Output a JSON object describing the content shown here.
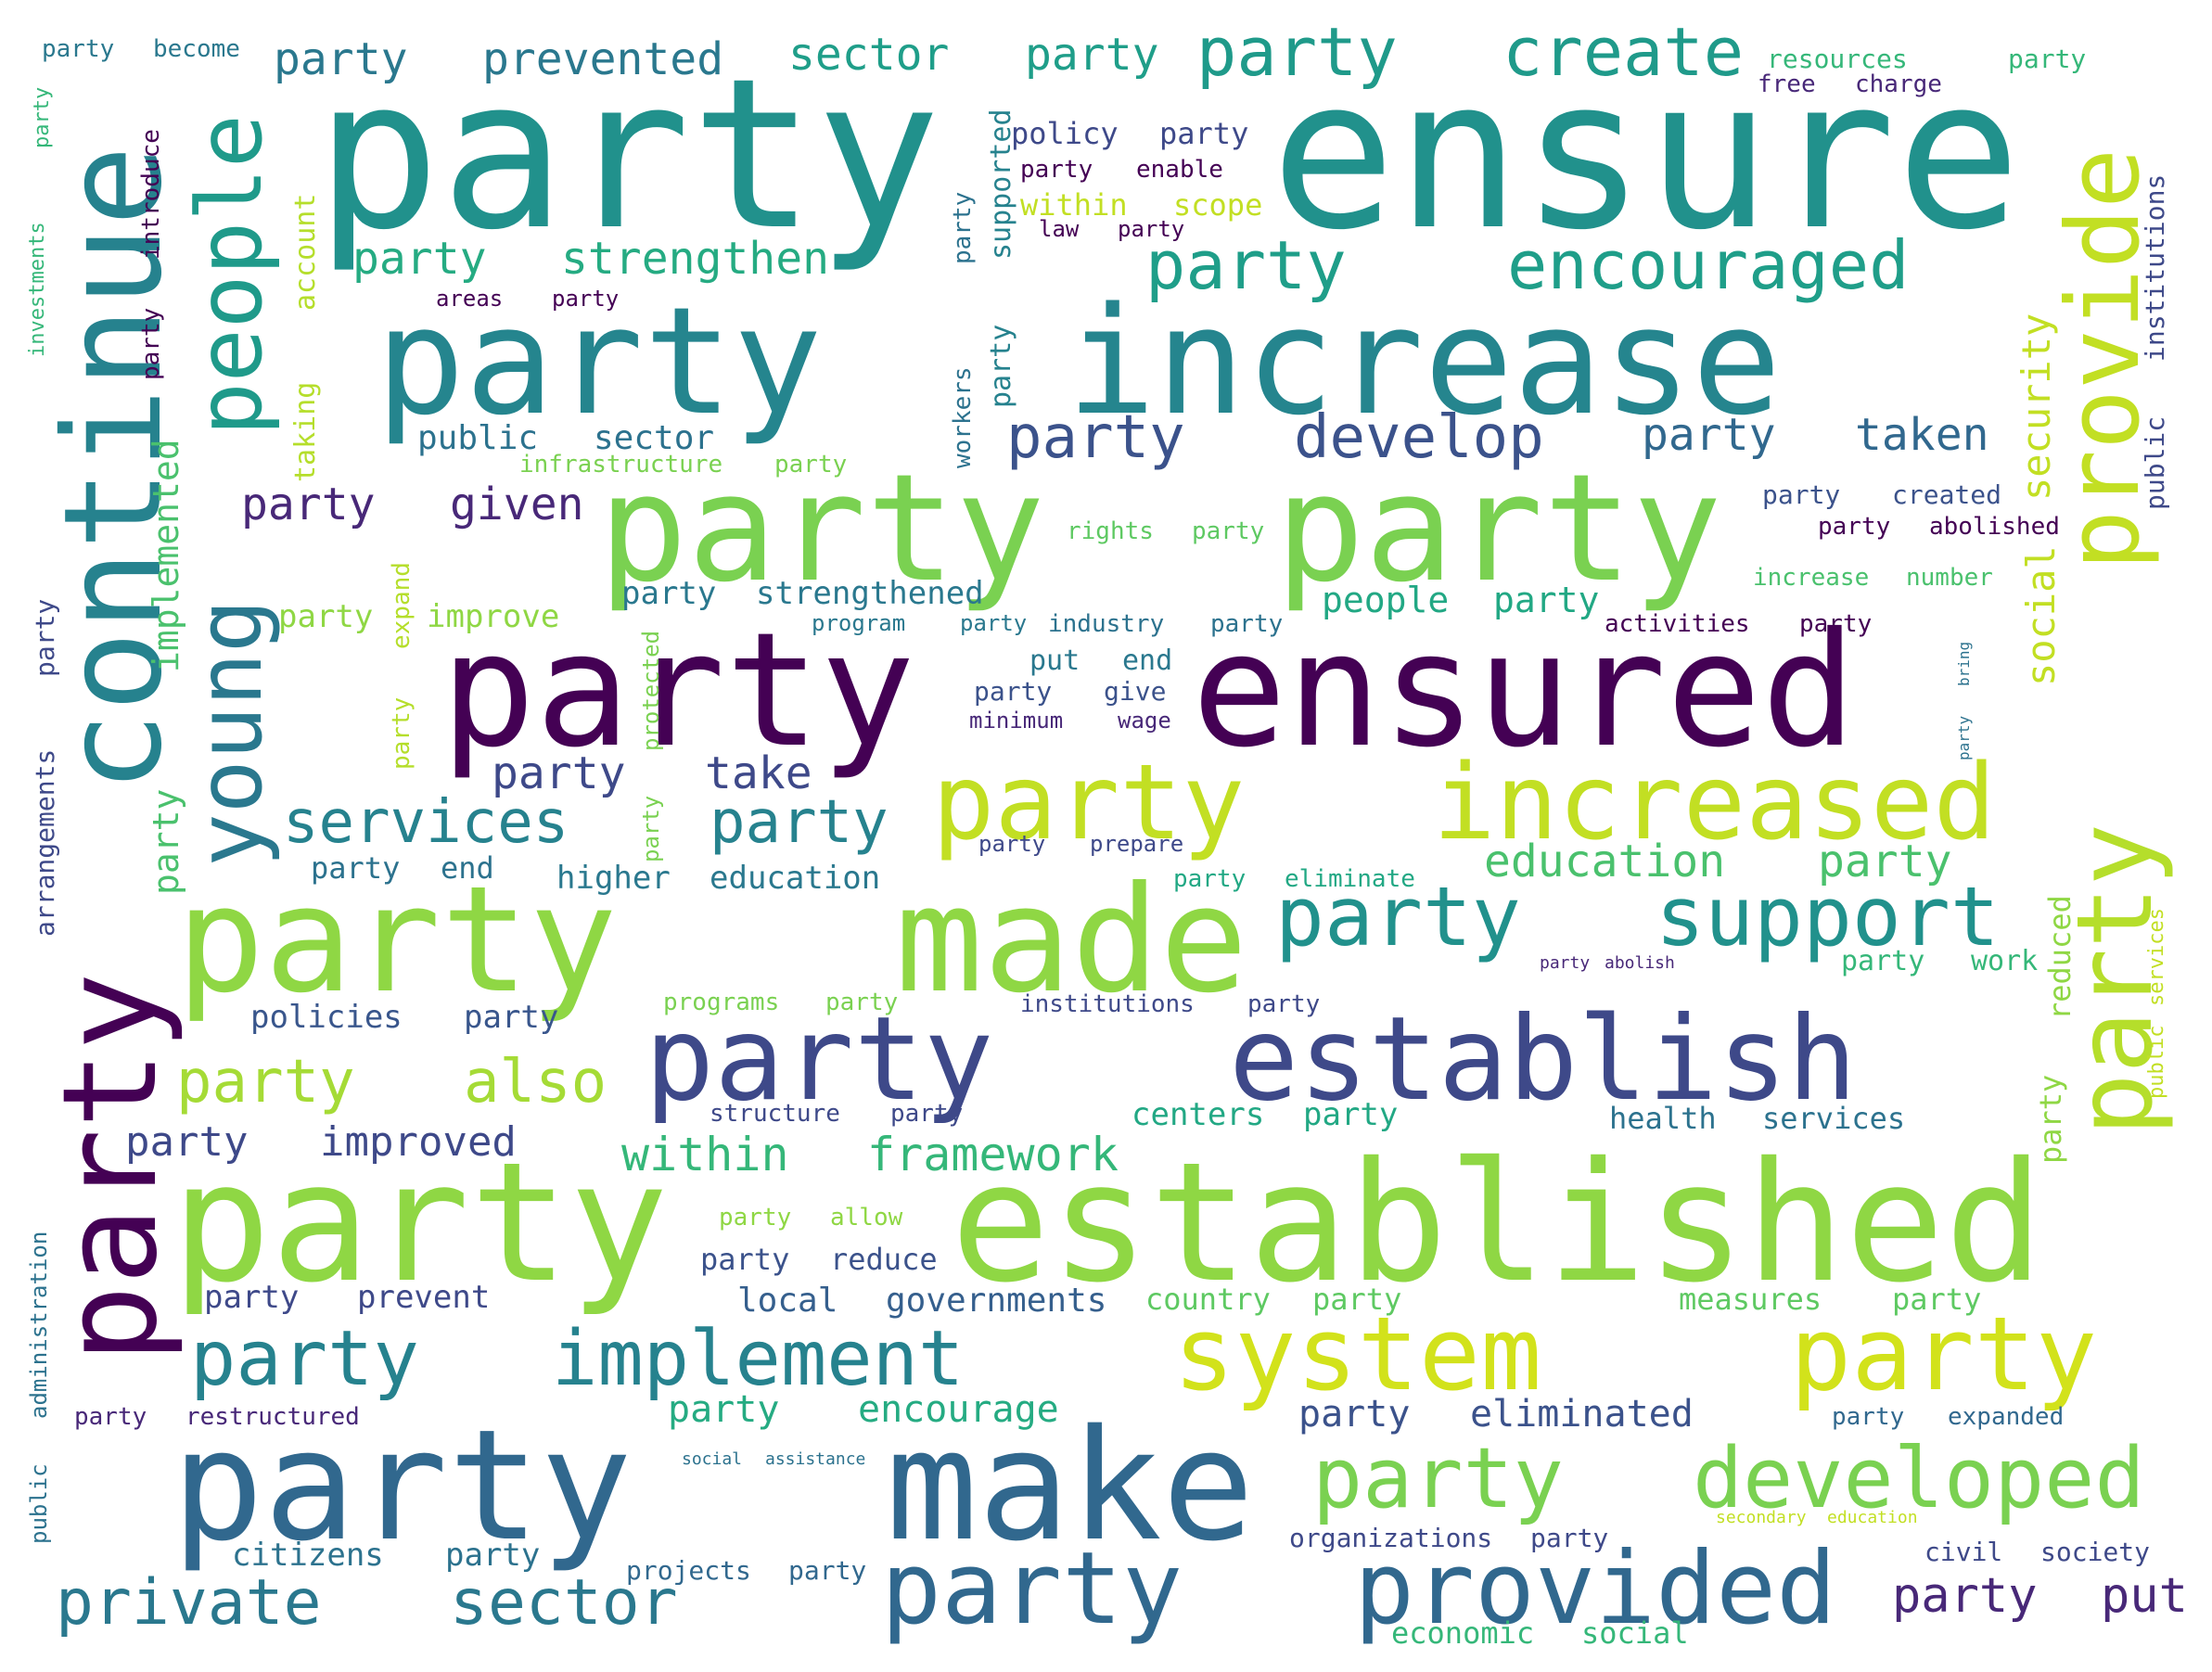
{
  "palette": {
    "dark_purple": "#440154",
    "indigo": "#482878",
    "slate_blue": "#3e4989",
    "steel_blue": "#31688e",
    "teal_blue": "#26828e",
    "teal": "#1f9e89",
    "sea_green": "#35b779",
    "lime": "#6ece58",
    "yellow_green": "#b5de2b",
    "yellow": "#fde725"
  },
  "words": [
    {
      "text": "party",
      "color": "#21918c"
    },
    {
      "text": "ensure",
      "color": "#21918c"
    },
    {
      "text": "party",
      "color": "#25858e"
    },
    {
      "text": "increase",
      "color": "#25858e"
    },
    {
      "text": "party",
      "color": "#7ad151"
    },
    {
      "text": "party",
      "color": "#7ad151"
    },
    {
      "text": "party",
      "color": "#440154"
    },
    {
      "text": "ensured",
      "color": "#440154"
    },
    {
      "text": "party",
      "color": "#c2df23"
    },
    {
      "text": "increased",
      "color": "#c2df23"
    },
    {
      "text": "party",
      "color": "#8fd744"
    },
    {
      "text": "made",
      "color": "#8fd744"
    },
    {
      "text": "party",
      "color": "#3e4989"
    },
    {
      "text": "establish",
      "color": "#3e4989"
    },
    {
      "text": "party",
      "color": "#8fd744"
    },
    {
      "text": "established",
      "color": "#8fd744"
    },
    {
      "text": "system",
      "color": "#d2e21b"
    },
    {
      "text": "party",
      "color": "#d2e21b"
    },
    {
      "text": "party",
      "color": "#31688e"
    },
    {
      "text": "make",
      "color": "#31688e"
    },
    {
      "text": "party",
      "color": "#31688e"
    },
    {
      "text": "provided",
      "color": "#31688e"
    },
    {
      "text": "party",
      "color": "#7ad151"
    },
    {
      "text": "developed",
      "color": "#7ad151"
    },
    {
      "text": "party",
      "color": "#1f9a8a"
    },
    {
      "text": "create",
      "color": "#1f9a8a"
    },
    {
      "text": "party",
      "color": "#1f9e89"
    },
    {
      "text": "encouraged",
      "color": "#1f9e89"
    },
    {
      "text": "party",
      "color": "#3b528b"
    },
    {
      "text": "develop",
      "color": "#3b528b"
    },
    {
      "text": "party",
      "color": "#21918c"
    },
    {
      "text": "support",
      "color": "#21918c"
    },
    {
      "text": "party",
      "color": "#26828e"
    },
    {
      "text": "implement",
      "color": "#26828e"
    },
    {
      "text": "private",
      "color": "#2a788e"
    },
    {
      "text": "sector",
      "color": "#2a788e"
    },
    {
      "text": "party",
      "color": "#a5db36"
    },
    {
      "text": "also",
      "color": "#a5db36"
    },
    {
      "text": "services",
      "color": "#26828e"
    },
    {
      "text": "party",
      "color": "#26828e"
    },
    {
      "text": "party",
      "color": "#2a788e"
    },
    {
      "text": "prevented",
      "color": "#2a788e"
    },
    {
      "text": "sector",
      "color": "#1f9e89"
    },
    {
      "text": "party",
      "color": "#1f9e89"
    },
    {
      "text": "party",
      "color": "#25ab82"
    },
    {
      "text": "strengthen",
      "color": "#25ab82"
    },
    {
      "text": "party",
      "color": "#482878"
    },
    {
      "text": "given",
      "color": "#482878"
    },
    {
      "text": "party",
      "color": "#31688e"
    },
    {
      "text": "taken",
      "color": "#31688e"
    },
    {
      "text": "party",
      "color": "#3e4989"
    },
    {
      "text": "take",
      "color": "#3e4989"
    },
    {
      "text": "education",
      "color": "#4ac16d"
    },
    {
      "text": "party",
      "color": "#4ac16d"
    },
    {
      "text": "within",
      "color": "#35b779"
    },
    {
      "text": "framework",
      "color": "#35b779"
    },
    {
      "text": "party",
      "color": "#3e4989"
    },
    {
      "text": "improved",
      "color": "#3e4989"
    },
    {
      "text": "party",
      "color": "#3b528b"
    },
    {
      "text": "eliminated",
      "color": "#3b528b"
    },
    {
      "text": "party",
      "color": "#25ab82"
    },
    {
      "text": "encourage",
      "color": "#25ab82"
    },
    {
      "text": "local",
      "color": "#355f8d"
    },
    {
      "text": "governments",
      "color": "#355f8d"
    },
    {
      "text": "party",
      "color": "#482878"
    },
    {
      "text": "put",
      "color": "#482878"
    },
    {
      "text": "party",
      "color": "#2a788e"
    },
    {
      "text": "strengthened",
      "color": "#2a788e"
    },
    {
      "text": "public",
      "color": "#2c728e"
    },
    {
      "text": "sector",
      "color": "#2c728e"
    },
    {
      "text": "party",
      "color": "#8fd744"
    },
    {
      "text": "improve",
      "color": "#8fd744"
    },
    {
      "text": "people",
      "color": "#22a884"
    },
    {
      "text": "party",
      "color": "#22a884"
    },
    {
      "text": "party",
      "color": "#2c728e"
    },
    {
      "text": "end",
      "color": "#2c728e"
    },
    {
      "text": "higher",
      "color": "#2a788e"
    },
    {
      "text": "education",
      "color": "#2a788e"
    },
    {
      "text": "policies",
      "color": "#39568c"
    },
    {
      "text": "party",
      "color": "#39568c"
    },
    {
      "text": "centers",
      "color": "#22a884"
    },
    {
      "text": "party",
      "color": "#22a884"
    },
    {
      "text": "health",
      "color": "#2c728e"
    },
    {
      "text": "services",
      "color": "#2c728e"
    },
    {
      "text": "party",
      "color": "#3e4989"
    },
    {
      "text": "prevent",
      "color": "#3e4989"
    },
    {
      "text": "party",
      "color": "#3b528b"
    },
    {
      "text": "reduce",
      "color": "#3b528b"
    },
    {
      "text": "country",
      "color": "#5ec962"
    },
    {
      "text": "party",
      "color": "#5ec962"
    },
    {
      "text": "measures",
      "color": "#5ec962"
    },
    {
      "text": "party",
      "color": "#5ec962"
    },
    {
      "text": "citizens",
      "color": "#2c728e"
    },
    {
      "text": "party",
      "color": "#2c728e"
    },
    {
      "text": "party",
      "color": "#31688e"
    },
    {
      "text": "expanded",
      "color": "#31688e"
    },
    {
      "text": "civil",
      "color": "#3e4989"
    },
    {
      "text": "society",
      "color": "#3e4989"
    },
    {
      "text": "organizations",
      "color": "#3e4989"
    },
    {
      "text": "party",
      "color": "#3e4989"
    },
    {
      "text": "projects",
      "color": "#31688e"
    },
    {
      "text": "party",
      "color": "#31688e"
    },
    {
      "text": "economic",
      "color": "#35b779"
    },
    {
      "text": "social",
      "color": "#35b779"
    },
    {
      "text": "party",
      "color": "#482878"
    },
    {
      "text": "restructured",
      "color": "#482878"
    },
    {
      "text": "party",
      "color": "#2a788e"
    },
    {
      "text": "become",
      "color": "#2a788e"
    },
    {
      "text": "resources",
      "color": "#35b779"
    },
    {
      "text": "party",
      "color": "#35b779"
    },
    {
      "text": "free",
      "color": "#482878"
    },
    {
      "text": "charge",
      "color": "#482878"
    },
    {
      "text": "policy",
      "color": "#3e4989"
    },
    {
      "text": "party",
      "color": "#3e4989"
    },
    {
      "text": "party",
      "color": "#440154"
    },
    {
      "text": "enable",
      "color": "#440154"
    },
    {
      "text": "within",
      "color": "#c2df23"
    },
    {
      "text": "scope",
      "color": "#c2df23"
    },
    {
      "text": "law",
      "color": "#440154"
    },
    {
      "text": "party",
      "color": "#440154"
    },
    {
      "text": "areas",
      "color": "#440154"
    },
    {
      "text": "party",
      "color": "#440154"
    },
    {
      "text": "infrastructure",
      "color": "#7ad151"
    },
    {
      "text": "party",
      "color": "#7ad151"
    },
    {
      "text": "rights",
      "color": "#5ec962"
    },
    {
      "text": "party",
      "color": "#5ec962"
    },
    {
      "text": "party",
      "color": "#3b528b"
    },
    {
      "text": "created",
      "color": "#3b528b"
    },
    {
      "text": "party",
      "color": "#440154"
    },
    {
      "text": "abolished",
      "color": "#440154"
    },
    {
      "text": "increase",
      "color": "#4ac16d"
    },
    {
      "text": "number",
      "color": "#4ac16d"
    },
    {
      "text": "program",
      "color": "#2a788e"
    },
    {
      "text": "party",
      "color": "#2a788e"
    },
    {
      "text": "industry",
      "color": "#2c728e"
    },
    {
      "text": "party",
      "color": "#2c728e"
    },
    {
      "text": "activities",
      "color": "#440154"
    },
    {
      "text": "party",
      "color": "#440154"
    },
    {
      "text": "put",
      "color": "#2a788e"
    },
    {
      "text": "end",
      "color": "#2a788e"
    },
    {
      "text": "party",
      "color": "#3b528b"
    },
    {
      "text": "give",
      "color": "#3b528b"
    },
    {
      "text": "minimum",
      "color": "#482878"
    },
    {
      "text": "wage",
      "color": "#482878"
    },
    {
      "text": "party",
      "color": "#3e4989"
    },
    {
      "text": "prepare",
      "color": "#3e4989"
    },
    {
      "text": "party",
      "color": "#22a884"
    },
    {
      "text": "eliminate",
      "color": "#22a884"
    },
    {
      "text": "party",
      "color": "#482878"
    },
    {
      "text": "abolish",
      "color": "#482878"
    },
    {
      "text": "party",
      "color": "#35b779"
    },
    {
      "text": "work",
      "color": "#35b779"
    },
    {
      "text": "programs",
      "color": "#7ad151"
    },
    {
      "text": "party",
      "color": "#7ad151"
    },
    {
      "text": "institutions",
      "color": "#3e4989"
    },
    {
      "text": "party",
      "color": "#3e4989"
    },
    {
      "text": "structure",
      "color": "#3e4989"
    },
    {
      "text": "party",
      "color": "#3e4989"
    },
    {
      "text": "party",
      "color": "#8fd744"
    },
    {
      "text": "allow",
      "color": "#8fd744"
    },
    {
      "text": "social",
      "color": "#2c728e"
    },
    {
      "text": "assistance",
      "color": "#2c728e"
    },
    {
      "text": "secondary",
      "color": "#c2df23"
    },
    {
      "text": "education",
      "color": "#c2df23"
    },
    {
      "text": "continue",
      "color": "#26828e"
    },
    {
      "text": "people",
      "color": "#1f9a8a"
    },
    {
      "text": "young",
      "color": "#2a788e"
    },
    {
      "text": "party",
      "color": "#440154"
    },
    {
      "text": "provide",
      "color": "#c2df23"
    },
    {
      "text": "party",
      "color": "#b5de2b"
    },
    {
      "text": "security",
      "color": "#c2df23"
    },
    {
      "text": "social",
      "color": "#c2df23"
    },
    {
      "text": "party",
      "color": "#8fd744"
    },
    {
      "text": "reduced",
      "color": "#8fd744"
    },
    {
      "text": "public",
      "color": "#3e4989"
    },
    {
      "text": "institutions",
      "color": "#3e4989"
    },
    {
      "text": "public",
      "color": "#c2df23"
    },
    {
      "text": "services",
      "color": "#c2df23"
    },
    {
      "text": "party",
      "color": "#2c728e"
    },
    {
      "text": "bring",
      "color": "#2c728e"
    },
    {
      "text": "implemented",
      "color": "#4ac16d"
    },
    {
      "text": "party",
      "color": "#4ac16d"
    },
    {
      "text": "account",
      "color": "#b5de2b"
    },
    {
      "text": "taking",
      "color": "#b5de2b"
    },
    {
      "text": "supported",
      "color": "#26828e"
    },
    {
      "text": "party",
      "color": "#26828e"
    },
    {
      "text": "workers",
      "color": "#2c728e"
    },
    {
      "text": "party",
      "color": "#2c728e"
    },
    {
      "text": "introduce",
      "color": "#440154"
    },
    {
      "text": "party",
      "color": "#440154"
    },
    {
      "text": "investments",
      "color": "#35b779"
    },
    {
      "text": "party",
      "color": "#35b779"
    },
    {
      "text": "arrangements",
      "color": "#3e4989"
    },
    {
      "text": "party",
      "color": "#3e4989"
    },
    {
      "text": "expand",
      "color": "#b5de2b"
    },
    {
      "text": "party",
      "color": "#b5de2b"
    },
    {
      "text": "protected",
      "color": "#7ad151"
    },
    {
      "text": "party",
      "color": "#7ad151"
    },
    {
      "text": "administration",
      "color": "#2c728e"
    },
    {
      "text": "public",
      "color": "#2c728e"
    }
  ]
}
